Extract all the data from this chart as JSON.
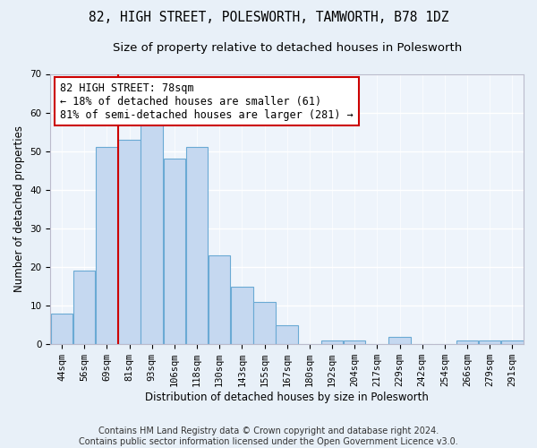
{
  "title": "82, HIGH STREET, POLESWORTH, TAMWORTH, B78 1DZ",
  "subtitle": "Size of property relative to detached houses in Polesworth",
  "xlabel": "Distribution of detached houses by size in Polesworth",
  "ylabel": "Number of detached properties",
  "categories": [
    "44sqm",
    "56sqm",
    "69sqm",
    "81sqm",
    "93sqm",
    "106sqm",
    "118sqm",
    "130sqm",
    "143sqm",
    "155sqm",
    "167sqm",
    "180sqm",
    "192sqm",
    "204sqm",
    "217sqm",
    "229sqm",
    "242sqm",
    "254sqm",
    "266sqm",
    "279sqm",
    "291sqm"
  ],
  "values": [
    8,
    19,
    51,
    53,
    57,
    48,
    51,
    23,
    15,
    11,
    5,
    0,
    1,
    1,
    0,
    2,
    0,
    0,
    1,
    1,
    1
  ],
  "bar_color": "#c5d8f0",
  "bar_edge_color": "#6aaad4",
  "vline_x_idx": 2.5,
  "vline_color": "#cc0000",
  "annotation_text": "82 HIGH STREET: 78sqm\n← 18% of detached houses are smaller (61)\n81% of semi-detached houses are larger (281) →",
  "annotation_box_color": "#ffffff",
  "annotation_edge_color": "#cc0000",
  "ylim": [
    0,
    70
  ],
  "yticks": [
    0,
    10,
    20,
    30,
    40,
    50,
    60,
    70
  ],
  "footer_text": "Contains HM Land Registry data © Crown copyright and database right 2024.\nContains public sector information licensed under the Open Government Licence v3.0.",
  "bg_color": "#e8f0f8",
  "plot_bg_color": "#eef4fb",
  "grid_color": "#ffffff",
  "title_fontsize": 10.5,
  "subtitle_fontsize": 9.5,
  "axis_label_fontsize": 8.5,
  "tick_fontsize": 7.5,
  "annotation_fontsize": 8.5,
  "footer_fontsize": 7
}
